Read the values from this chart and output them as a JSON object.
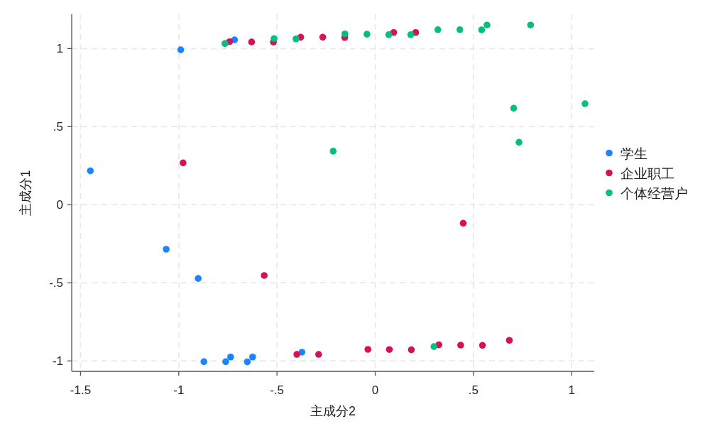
{
  "chart_data": {
    "type": "scatter",
    "xlabel": "主成分2",
    "ylabel": "主成分1",
    "xlim": [
      -1.545,
      1.115
    ],
    "ylim": [
      -1.067,
      1.22
    ],
    "xticks": [
      -1.5,
      -1,
      {
        "value": -0.5,
        "label": "-.5"
      },
      0,
      {
        "value": 0.5,
        "label": ".5"
      },
      1
    ],
    "yticks": [
      -1,
      {
        "value": -0.5,
        "label": "-.5"
      },
      0,
      {
        "value": 0.5,
        "label": ".5"
      },
      1
    ],
    "grid": true,
    "legend": "right",
    "marker": "circle",
    "series": [
      {
        "name": "学生",
        "color": "#1a85ff",
        "x": [
          -1.45,
          -0.99,
          -0.716,
          -1.064,
          -0.901,
          -0.872,
          -0.761,
          -0.736,
          -0.651,
          -0.624,
          -0.373
        ],
        "values": [
          0.217,
          0.992,
          1.056,
          -0.285,
          -0.472,
          -1.005,
          -1.005,
          -0.975,
          -1.006,
          -0.975,
          -0.944
        ]
      },
      {
        "name": "企业职工",
        "color": "#d41159",
        "x": [
          -0.741,
          -0.629,
          -0.518,
          -0.379,
          -0.267,
          -0.155,
          0.094,
          0.206,
          -0.978,
          -0.565,
          0.448,
          -0.399,
          -0.288,
          -0.037,
          0.072,
          0.184,
          0.324,
          0.435,
          0.546,
          0.683
        ],
        "values": [
          1.044,
          1.042,
          1.041,
          1.073,
          1.073,
          1.071,
          1.103,
          1.103,
          0.268,
          -0.453,
          -0.118,
          -0.958,
          -0.958,
          -0.926,
          -0.927,
          -0.929,
          -0.897,
          -0.899,
          -0.9,
          -0.868
        ]
      },
      {
        "name": "个体经营户",
        "color": "#00bf7f",
        "x": [
          -0.765,
          -0.515,
          -0.403,
          -0.154,
          -0.042,
          0.069,
          0.181,
          0.319,
          0.431,
          0.542,
          0.569,
          0.791,
          -0.214,
          0.705,
          0.732,
          1.068,
          0.299
        ],
        "values": [
          1.032,
          1.064,
          1.062,
          1.094,
          1.092,
          1.089,
          1.089,
          1.121,
          1.121,
          1.12,
          1.151,
          1.151,
          0.343,
          0.618,
          0.4,
          0.647,
          -0.908
        ]
      }
    ]
  }
}
